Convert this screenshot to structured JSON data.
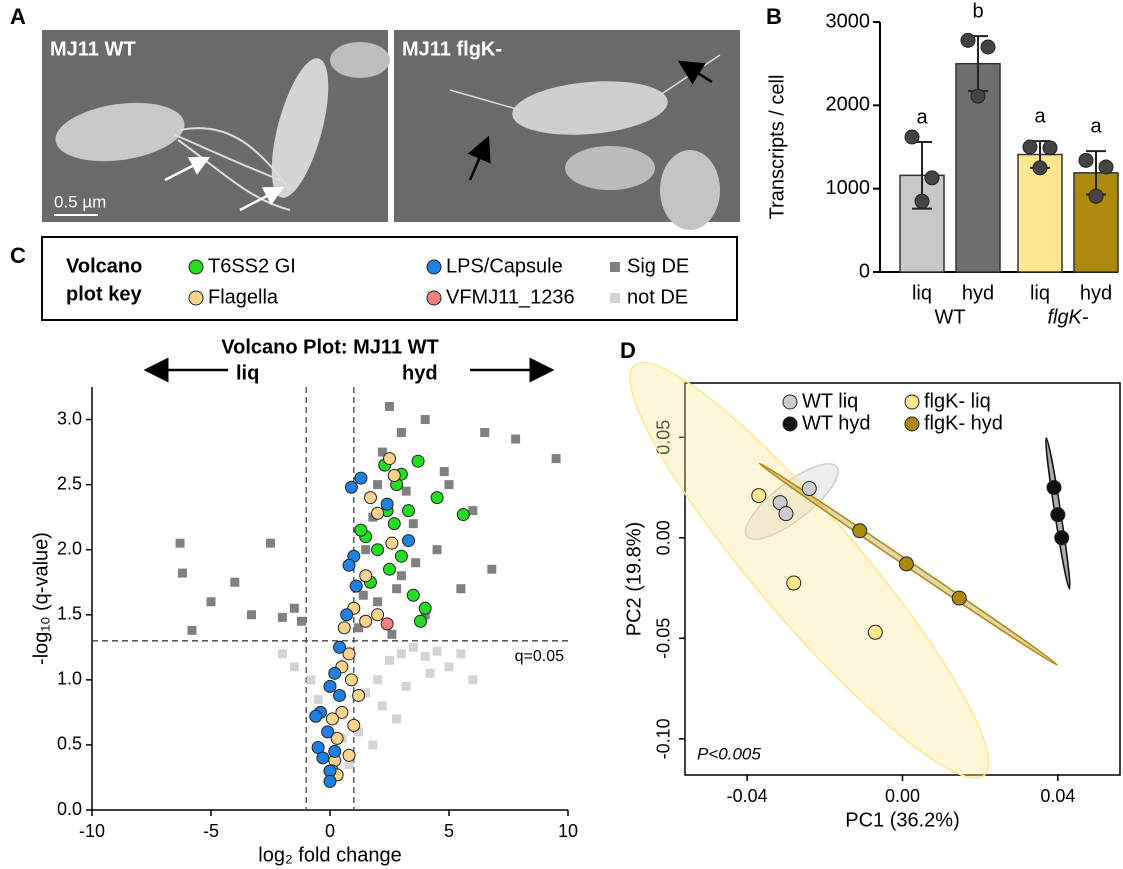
{
  "panel_labels": [
    "A",
    "B",
    "C",
    "D"
  ],
  "micrographs": [
    {
      "label": "MJ11 WT"
    },
    {
      "label": "MJ11 flgK-"
    }
  ],
  "scale_bar": "0.5 µm",
  "chart_data": [
    {
      "type": "bar",
      "ylabel": "Transcripts / cell",
      "categories": [
        "liq",
        "hyd",
        "liq",
        "hyd"
      ],
      "group_labels": [
        "WT",
        "flgK-"
      ],
      "values": [
        1160,
        2500,
        1410,
        1190
      ],
      "errors": [
        400,
        330,
        160,
        260
      ],
      "points": [
        [
          1620,
          1130,
          850
        ],
        [
          2780,
          2700,
          2110
        ],
        [
          1500,
          1490,
          1250
        ],
        [
          1340,
          1260,
          910
        ]
      ],
      "letters": [
        "a",
        "b",
        "a",
        "a"
      ],
      "colors": [
        "#c8c8c8",
        "#6f6f6f",
        "#fde68d",
        "#ad8a0e"
      ],
      "ylim": [
        0,
        3000
      ],
      "yticks": [
        0,
        1000,
        2000,
        3000
      ]
    },
    {
      "type": "scatter",
      "title": "Volcano Plot: MJ11 WT",
      "arrow_labels": [
        "liq",
        "hyd"
      ],
      "legend_title": [
        "Volcano",
        "plot key"
      ],
      "xlabel": "log₂ fold change",
      "ylabel": "-log₁₀ (q-value)",
      "xlim": [
        -10,
        10
      ],
      "ylim": [
        0,
        3.25
      ],
      "xticks": [
        -10,
        -5,
        0,
        5,
        10
      ],
      "yticks": [
        {
          "value": 0,
          "label": "0.0"
        },
        {
          "value": 0.5,
          "label": "0.5"
        },
        {
          "value": 1,
          "label": "1.0"
        },
        {
          "value": 1.5,
          "label": "1.5"
        },
        {
          "value": 2,
          "label": "2.0"
        },
        {
          "value": 2.5,
          "label": "2.5"
        },
        {
          "value": 3,
          "label": "3.0"
        }
      ],
      "threshold_x": [
        -1,
        1
      ],
      "threshold_y": 1.3,
      "threshold_label": "q=0.05",
      "series": [
        {
          "name": "T6SS2 GI",
          "color": "#22dd22",
          "marker": "circle",
          "x": [
            2.3,
            3.7,
            3.0,
            2.8,
            4.5,
            5.6,
            3.3,
            2.7,
            1.5,
            2.0,
            3.0,
            2.5,
            1.7,
            4.0,
            3.5,
            3.8,
            2.4,
            1.3
          ],
          "values": [
            2.65,
            2.68,
            2.58,
            2.5,
            2.4,
            2.27,
            2.3,
            2.2,
            2.1,
            2.0,
            1.95,
            1.85,
            1.75,
            1.55,
            1.65,
            1.45,
            2.3,
            2.15
          ]
        },
        {
          "name": "Flagella",
          "color": "#f8d38c",
          "marker": "circle",
          "x": [
            2.5,
            2.7,
            1.7,
            2.0,
            2.6,
            1.5,
            1.0,
            0.6,
            0.8,
            0.5,
            0.9,
            1.2,
            0.5,
            1.0,
            0.1,
            0.3,
            0.8,
            0.2,
            0.1,
            0.3,
            1.5,
            2.0
          ],
          "values": [
            2.7,
            2.57,
            2.4,
            2.28,
            2.05,
            1.8,
            1.55,
            1.4,
            1.2,
            1.1,
            1.0,
            0.88,
            0.75,
            0.65,
            0.7,
            0.55,
            0.42,
            0.38,
            0.3,
            0.27,
            1.45,
            1.5
          ]
        },
        {
          "name": "LPS/Capsule",
          "color": "#1e80e0",
          "marker": "circle",
          "x": [
            1.3,
            0.9,
            2.4,
            3.3,
            1.0,
            0.8,
            1.1,
            0.7,
            0.4,
            0.2,
            0.0,
            0.4,
            -0.4,
            -0.6,
            -0.1,
            -0.5,
            0.2,
            -0.3,
            0.0,
            0.0
          ],
          "values": [
            2.55,
            2.48,
            2.35,
            2.07,
            1.95,
            1.88,
            1.72,
            1.5,
            1.25,
            1.05,
            0.95,
            0.88,
            0.75,
            0.72,
            0.6,
            0.48,
            0.45,
            0.4,
            0.3,
            0.22
          ]
        },
        {
          "name": "VFMJ11_1236",
          "color": "#f08080",
          "marker": "circle",
          "x": [
            2.4
          ],
          "values": [
            1.43
          ]
        },
        {
          "name": "Sig DE",
          "color": "#808080",
          "marker": "square",
          "x": [
            -6.3,
            -6.2,
            -4.0,
            -5.0,
            -5.8,
            -2.5,
            -3.3,
            -1.5,
            -2.0,
            -1.2,
            7.8,
            9.5,
            6.5,
            6.0,
            5.0,
            4.0,
            2.5,
            3.0,
            2.0,
            1.5,
            3.5,
            4.5,
            2.0,
            3.0,
            1.2,
            5.5,
            6.8,
            4.0,
            2.2,
            3.2,
            1.8,
            4.8,
            2.8,
            1.4,
            3.6,
            2.6
          ],
          "values": [
            2.05,
            1.82,
            1.75,
            1.6,
            1.38,
            2.05,
            1.5,
            1.55,
            1.48,
            1.45,
            2.85,
            2.7,
            2.9,
            2.3,
            2.5,
            3.0,
            3.1,
            2.9,
            2.5,
            2.0,
            2.2,
            2.0,
            1.6,
            1.8,
            1.4,
            1.7,
            1.85,
            1.5,
            2.75,
            2.45,
            2.25,
            2.6,
            1.7,
            1.65,
            1.9,
            1.35
          ]
        },
        {
          "name": "not DE",
          "color": "#d3d3d3",
          "marker": "square",
          "x": [
            -2.0,
            -1.5,
            -0.8,
            0.5,
            1.5,
            2.0,
            2.5,
            3.0,
            3.5,
            4.0,
            4.5,
            5.0,
            5.5,
            6.0,
            1.2,
            2.2,
            3.2,
            0.8,
            1.8,
            -0.5,
            2.8,
            4.2
          ],
          "values": [
            1.2,
            1.1,
            1.0,
            0.55,
            0.9,
            1.0,
            1.15,
            1.2,
            1.25,
            1.18,
            1.22,
            1.1,
            1.2,
            1.0,
            0.6,
            0.8,
            0.95,
            0.35,
            0.5,
            0.85,
            0.7,
            1.05
          ]
        }
      ]
    },
    {
      "type": "scatter",
      "xlabel": "PC1 (36.2%)",
      "ylabel": "PC2 (19.8%)",
      "annotation": "P<0.005",
      "xlim": [
        -0.056,
        0.056
      ],
      "ylim": [
        -0.118,
        0.077
      ],
      "frame": true,
      "ellipses": true,
      "xticks": [
        -0.04,
        {
          "value": 0,
          "label": "0.00"
        },
        0.04
      ],
      "yticks": [
        {
          "value": -0.1,
          "label": "-0.10"
        },
        -0.05,
        {
          "value": 0,
          "label": "0.00"
        },
        0.05
      ],
      "series": [
        {
          "name": "WT liq",
          "color": "#cccccc",
          "marker": "circle",
          "x": [
            -0.024,
            -0.0315,
            -0.03
          ],
          "values": [
            0.0245,
            0.0175,
            0.012
          ]
        },
        {
          "name": "flgK- liq",
          "color": "#fde68d",
          "marker": "circle",
          "x": [
            -0.037,
            -0.028,
            -0.007
          ],
          "values": [
            0.021,
            -0.0225,
            -0.047
          ]
        },
        {
          "name": "WT hyd",
          "color": "#111111",
          "marker": "circle",
          "x": [
            0.039,
            0.04,
            0.041
          ],
          "values": [
            0.025,
            0.0115,
            0.0
          ]
        },
        {
          "name": "flgK- hyd",
          "color": "#ad8a0e",
          "marker": "circle",
          "x": [
            -0.011,
            0.001,
            0.0146
          ],
          "values": [
            0.0035,
            -0.013,
            -0.03
          ]
        }
      ]
    }
  ]
}
